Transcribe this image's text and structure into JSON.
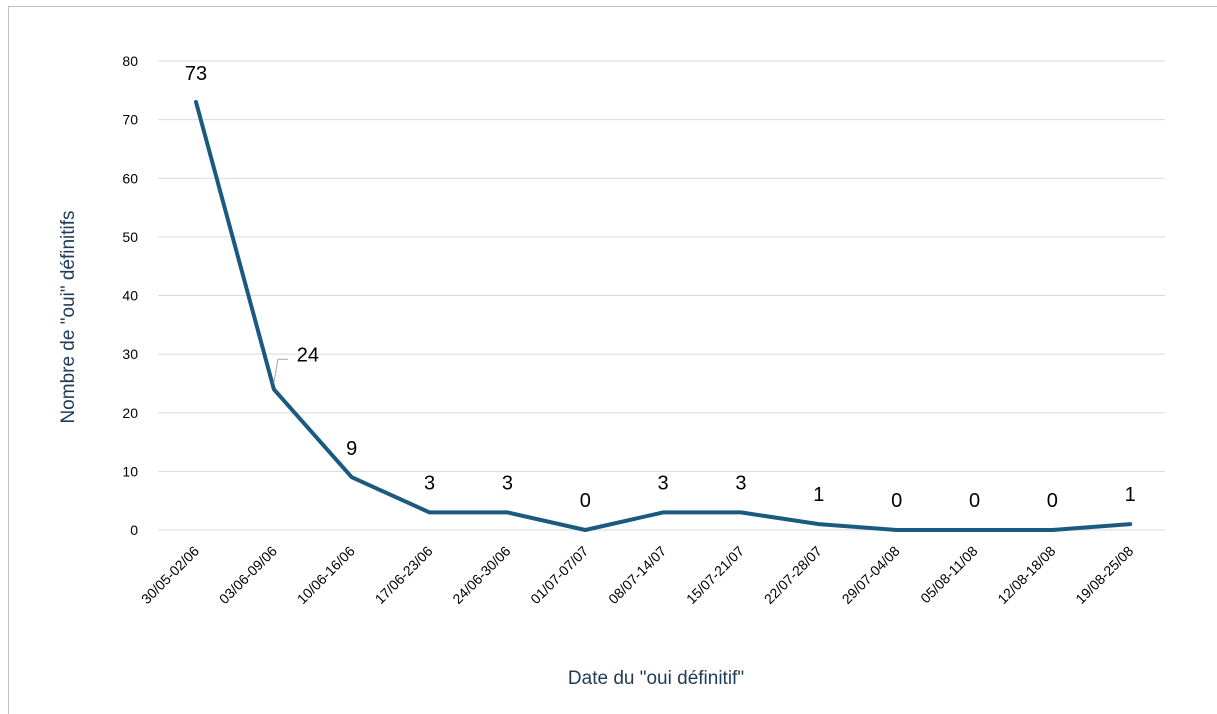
{
  "chart_data": {
    "type": "line",
    "xlabel": "Date du \"oui définitif\"",
    "ylabel": "Nombre de \"oui\" définitifs",
    "ylim": [
      0,
      80
    ],
    "yticks": [
      0,
      10,
      20,
      30,
      40,
      50,
      60,
      70,
      80
    ],
    "grid": true,
    "categories": [
      "30/05-02/06",
      "03/06-09/06",
      "10/06-16/06",
      "17/06-23/06",
      "24/06-30/06",
      "01/07-07/07",
      "08/07-14/07",
      "15/07-21/07",
      "22/07-28/07",
      "29/07-04/08",
      "05/08-11/08",
      "12/08-18/08",
      "19/08-25/08"
    ],
    "values": [
      73,
      24,
      9,
      3,
      3,
      0,
      3,
      3,
      1,
      0,
      0,
      0,
      1
    ],
    "data_labels": [
      "73",
      "24",
      "9",
      "3",
      "3",
      "0",
      "3",
      "3",
      "1",
      "0",
      "0",
      "0",
      "1"
    ],
    "colors": {
      "line": "#1a5a7e",
      "axis_title": "#1f3b57",
      "grid": "#d9d9d9"
    }
  }
}
